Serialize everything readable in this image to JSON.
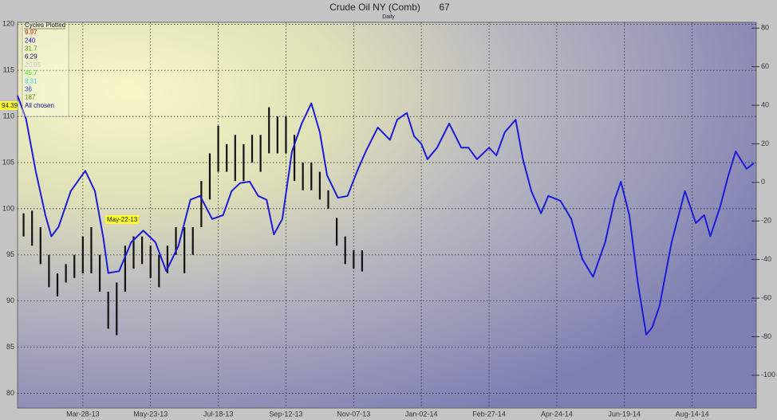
{
  "chart_data": {
    "type": "ohlc",
    "title": "Crude Oil NY (Comb)",
    "title_value": "67",
    "subtitle": "Daily",
    "xlim": [
      "Feb-02-13",
      "Oct-06-14"
    ],
    "xticks": [
      "Mar-28-13",
      "May-23-13",
      "Jul-18-13",
      "Sep-12-13",
      "Nov-07-13",
      "Jan-02-14",
      "Feb-27-14",
      "Apr-24-14",
      "Jun-19-14",
      "Aug-14-14"
    ],
    "ylim": [
      78.4,
      120.2
    ],
    "yticks": [
      80,
      85,
      90,
      95,
      100,
      105,
      110,
      115,
      120
    ],
    "y2lim": [
      -117,
      83
    ],
    "y2ticks": [
      -100,
      -80,
      -60,
      -40,
      -20,
      0,
      20,
      40,
      60,
      80
    ],
    "grid": true,
    "price": {
      "color": "#111111",
      "x": [
        "Feb-07-13",
        "Feb-14-13",
        "Feb-21-13",
        "Feb-28-13",
        "Mar-07-13",
        "Mar-14-13",
        "Mar-21-13",
        "Mar-28-13",
        "Apr-04-13",
        "Apr-11-13",
        "Apr-18-13",
        "Apr-25-13",
        "May-02-13",
        "May-09-13",
        "May-16-13",
        "May-23-13",
        "May-30-13",
        "Jun-06-13",
        "Jun-13-13",
        "Jun-20-13",
        "Jun-27-13",
        "Jul-04-13",
        "Jul-11-13",
        "Jul-18-13",
        "Jul-25-13",
        "Aug-01-13",
        "Aug-08-13",
        "Aug-15-13",
        "Aug-22-13",
        "Aug-29-13",
        "Sep-05-13",
        "Sep-12-13",
        "Sep-19-13",
        "Sep-26-13",
        "Oct-03-13",
        "Oct-10-13",
        "Oct-17-13",
        "Oct-24-13",
        "Oct-31-13",
        "Nov-07-13",
        "Nov-14-13"
      ],
      "high": [
        99.5,
        99.8,
        98,
        95,
        93,
        94,
        95,
        97,
        98,
        95,
        91,
        92,
        96,
        97,
        97,
        96,
        95,
        96,
        98,
        98,
        98,
        103,
        106,
        109,
        107,
        108,
        107,
        108,
        108,
        111,
        110,
        110,
        108,
        105,
        105,
        104,
        102,
        99,
        97,
        95.5,
        95.5
      ],
      "low": [
        97,
        96,
        94,
        91.5,
        90.5,
        92,
        92.5,
        93,
        93,
        91,
        87,
        86.3,
        91,
        93.5,
        94,
        92.5,
        91.5,
        93,
        95,
        93,
        95,
        98,
        101,
        104,
        104,
        103,
        103,
        105,
        104,
        106,
        106,
        106,
        103,
        102,
        102,
        101,
        100,
        96,
        94,
        93.5,
        93.2
      ]
    },
    "cycle": {
      "color": "#1c1cd8",
      "axis": "y2",
      "x": [
        "Feb-02-13",
        "Feb-09-13",
        "Feb-17-13",
        "Feb-25-13",
        "Mar-02-13",
        "Mar-08-13",
        "Mar-18-13",
        "Mar-30-13",
        "Apr-07-13",
        "Apr-14-13",
        "Apr-18-13",
        "Apr-27-13",
        "May-07-13",
        "May-17-13",
        "May-27-13",
        "Jun-05-13",
        "Jun-15-13",
        "Jun-25-13",
        "Jul-03-13",
        "Jul-13-13",
        "Jul-22-13",
        "Jul-29-13",
        "Aug-05-13",
        "Aug-13-13",
        "Aug-20-13",
        "Aug-27-13",
        "Sep-02-13",
        "Sep-09-13",
        "Sep-17-13",
        "Sep-25-13",
        "Oct-03-13",
        "Oct-10-13",
        "Oct-16-13",
        "Oct-25-13",
        "Nov-02-13",
        "Nov-10-13",
        "Nov-17-13",
        "Nov-27-13",
        "Dec-07-13",
        "Dec-13-13",
        "Dec-21-13",
        "Dec-27-13",
        "Jan-02-14",
        "Jan-07-14",
        "Jan-15-14",
        "Jan-25-14",
        "Feb-04-14",
        "Feb-10-14",
        "Feb-17-14",
        "Feb-27-14",
        "Mar-05-14",
        "Mar-12-14",
        "Mar-21-14",
        "Mar-27-14",
        "Apr-03-14",
        "Apr-11-14",
        "Apr-17-14",
        "Apr-27-14",
        "May-06-14",
        "May-15-14",
        "May-24-14",
        "Jun-03-14",
        "Jun-11-14",
        "Jun-16-14",
        "Jun-23-14",
        "Jun-30-14",
        "Jul-07-14",
        "Jul-12-14",
        "Jul-18-14",
        "Jul-28-14",
        "Aug-08-14",
        "Aug-17-14",
        "Aug-24-14",
        "Aug-29-14",
        "Sep-06-14",
        "Sep-13-14",
        "Sep-19-14",
        "Sep-28-14",
        "Oct-04-14"
      ],
      "values": [
        45,
        33,
        6,
        -17,
        -28,
        -23,
        -4.5,
        6,
        -4.5,
        -29,
        -47,
        -46,
        -31,
        -25,
        -31,
        -46,
        -33,
        -9,
        -7,
        -19,
        -17,
        -4.5,
        -0.4,
        0.4,
        -7,
        -9,
        -27,
        -19,
        16,
        30.5,
        41,
        26,
        3.7,
        -8,
        -7,
        6,
        16,
        28.5,
        22,
        32.5,
        36,
        24,
        20,
        12,
        18,
        30.5,
        18,
        18,
        12,
        18,
        14,
        26,
        32.5,
        12,
        -4.5,
        -16,
        -7,
        -9.5,
        -19,
        -39.6,
        -49,
        -31,
        -8.7,
        0.4,
        -17,
        -52,
        -79,
        -75,
        -64,
        -31,
        -4.5,
        -21,
        -17,
        -28,
        -13,
        3.7,
        16,
        7,
        10
      ]
    },
    "legend": {
      "title": "Cycles Plotted",
      "entries": [
        {
          "label": "9.97",
          "color": "#d01010"
        },
        {
          "label": "240",
          "color": "#1010c0"
        },
        {
          "label": "31.7",
          "color": "#3a9a20"
        },
        {
          "label": "6.29",
          "color": "#101050"
        },
        {
          "label": "20.95",
          "color": "#c8c8c8"
        },
        {
          "label": "45.7",
          "color": "#30e030"
        },
        {
          "label": "8.31",
          "color": "#30d8e0"
        },
        {
          "label": "36",
          "color": "#2040e0"
        },
        {
          "label": "187",
          "color": "#5a8a10"
        },
        {
          "label": "All chosen",
          "color": "#1010a0"
        }
      ]
    },
    "annotations": [
      "94.39",
      "May-22-13"
    ]
  }
}
